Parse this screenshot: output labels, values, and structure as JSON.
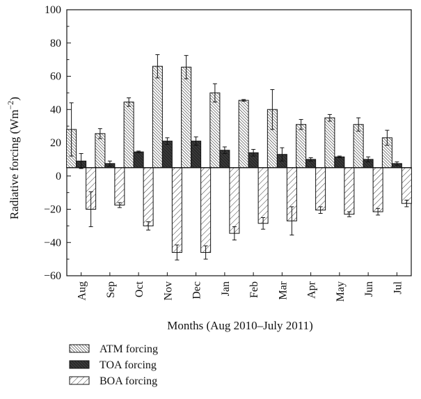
{
  "chart_data": {
    "type": "bar",
    "xlabel": "Months (Aug 2010–July 2011)",
    "ylabel": "Radiative forcing (Wm",
    "ylabel_sup": "−2",
    "ylabel_close": ")",
    "ylim": [
      -60,
      100
    ],
    "yticks": [
      -60,
      -40,
      -20,
      0,
      20,
      40,
      60,
      80,
      100
    ],
    "ytick_labels": [
      "−60",
      "−40",
      "−20",
      "0",
      "20",
      "40",
      "60",
      "80",
      "100"
    ],
    "baseline": 5,
    "categories": [
      "Aug",
      "Sep",
      "Oct",
      "Nov",
      "Dec",
      "Jan",
      "Feb",
      "Mar",
      "Apr",
      "May",
      "Jun",
      "Jul"
    ],
    "legend_position": "below",
    "series": [
      {
        "name": "ATM forcing",
        "pattern": "dense-hatch",
        "values": [
          28,
          25.5,
          44.5,
          66,
          65.5,
          50,
          45.5,
          40,
          31,
          35,
          31,
          23
        ],
        "errors": [
          16,
          3,
          2.5,
          7,
          7,
          5.5,
          0.5,
          12,
          3,
          2,
          4,
          4.5
        ]
      },
      {
        "name": "TOA forcing",
        "pattern": "dark",
        "values": [
          9,
          7.5,
          14.5,
          21,
          21,
          15.5,
          14,
          13,
          10,
          11.5,
          10,
          7.5
        ],
        "errors": [
          4.5,
          1.5,
          0.5,
          2,
          2.5,
          2,
          2,
          4,
          1,
          0.5,
          1.5,
          1
        ]
      },
      {
        "name": "BOA forcing",
        "pattern": "light-hatch",
        "values": [
          -20,
          -17.5,
          -30,
          -46,
          -46,
          -34.5,
          -28.5,
          -27,
          -20.5,
          -23,
          -21.5,
          -16.5
        ],
        "errors": [
          10.5,
          1.5,
          2.5,
          4.5,
          4,
          4,
          3.5,
          8.5,
          2,
          1.5,
          2,
          2
        ]
      }
    ]
  }
}
